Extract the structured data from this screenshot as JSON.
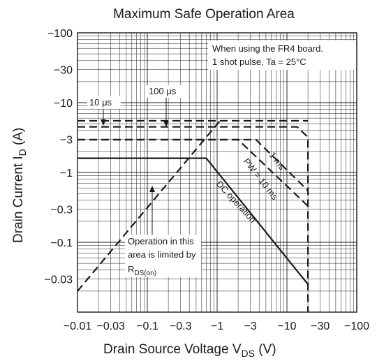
{
  "chart_data": {
    "type": "line",
    "title": "Maximum Safe Operation Area",
    "xlabel": {
      "main": "Drain Source Voltage  V",
      "sub": "DS",
      "unit": " (V)"
    },
    "ylabel": {
      "main": "Drain Current  I",
      "sub": "D",
      "unit": "   (A)"
    },
    "x_scale": "log",
    "y_scale": "log",
    "xlim": [
      0.01,
      100
    ],
    "ylim": [
      0.01,
      100
    ],
    "x_ticks": [
      {
        "value": 0.01,
        "label": "−0.01"
      },
      {
        "value": 0.03,
        "label": "−0.03"
      },
      {
        "value": 0.1,
        "label": "−0.1"
      },
      {
        "value": 0.3,
        "label": "−0.3"
      },
      {
        "value": 1,
        "label": "−1"
      },
      {
        "value": 3,
        "label": "−3"
      },
      {
        "value": 10,
        "label": "−10"
      },
      {
        "value": 30,
        "label": "−30"
      },
      {
        "value": 100,
        "label": "−100"
      }
    ],
    "y_ticks": [
      {
        "value": 100,
        "label": "−100"
      },
      {
        "value": 30,
        "label": "−30"
      },
      {
        "value": 10,
        "label": "−10"
      },
      {
        "value": 3,
        "label": "−3"
      },
      {
        "value": 1,
        "label": "−1"
      },
      {
        "value": 0.3,
        "label": "−0.3"
      },
      {
        "value": 0.1,
        "label": "−0.1"
      },
      {
        "value": 0.03,
        "label": "−0.03"
      }
    ],
    "grid": true,
    "notes": [
      "When using the FR4 board.",
      "1 shot pulse, Ta = 25°C"
    ],
    "series": [
      {
        "id": "rdson-limit",
        "style": "dashed",
        "points": [
          [
            0.01,
            0.02
          ],
          [
            1.1,
            5.5
          ]
        ]
      },
      {
        "id": "10us",
        "style": "dashed",
        "points": [
          [
            0.01,
            5.5
          ],
          [
            20,
            5.5
          ]
        ]
      },
      {
        "id": "100us",
        "style": "dashed",
        "points": [
          [
            0.01,
            4.5
          ],
          [
            14,
            4.5
          ],
          [
            20,
            3.2
          ],
          [
            20,
            0.01
          ]
        ]
      },
      {
        "id": "1ms",
        "style": "dashed",
        "points": [
          [
            0.01,
            2.95
          ],
          [
            3.6,
            2.95
          ],
          [
            20,
            0.55
          ]
        ]
      },
      {
        "id": "pw10ms",
        "style": "dashed",
        "points": [
          [
            0.01,
            2.95
          ],
          [
            2.0,
            2.95
          ],
          [
            20,
            0.33
          ]
        ]
      },
      {
        "id": "dc",
        "style": "solid",
        "points": [
          [
            0.01,
            1.6
          ],
          [
            0.7,
            1.6
          ],
          [
            20,
            0.025
          ]
        ]
      }
    ],
    "annotations": {
      "t10us": "10 μs",
      "t100us": "100 μs",
      "t1ms": "1 ms",
      "tpw": "PW = 10 ms",
      "tdc": "DC operation",
      "rds": {
        "line1": "Operation in this",
        "line2": "area is limited by",
        "main": "R",
        "sub": "DS(on)"
      }
    }
  }
}
